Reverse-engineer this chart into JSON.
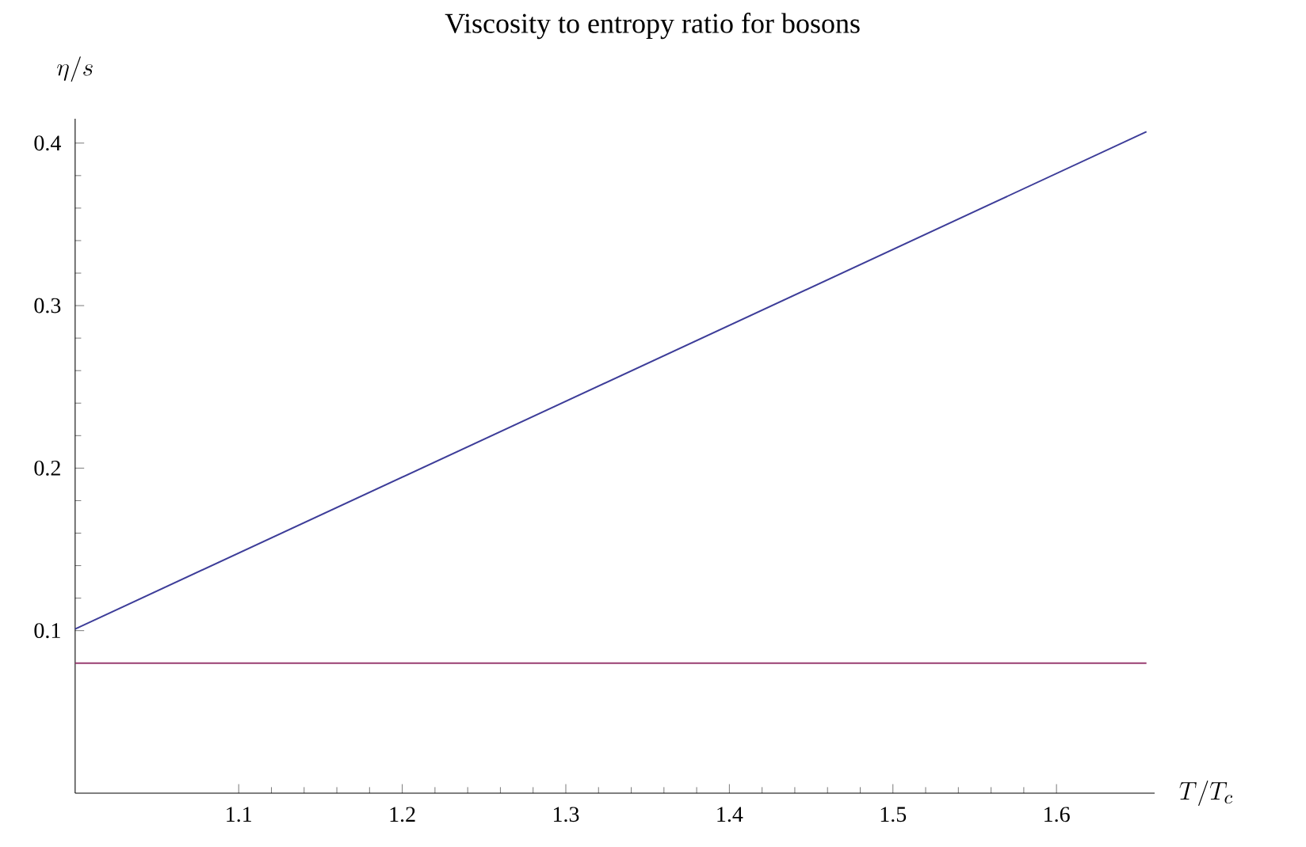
{
  "chart_data": {
    "type": "line",
    "title": "Viscosity to entropy ratio for bosons",
    "xlabel": "T/T_c",
    "ylabel": "\\eta/s",
    "x": [
      1.0,
      1.655
    ],
    "series": [
      {
        "color": "#3d3d99",
        "values": [
          0.101,
          0.407
        ]
      },
      {
        "color": "#993d71",
        "values": [
          0.08,
          0.08
        ]
      }
    ],
    "xlim": [
      1.0,
      1.66
    ],
    "ylim": [
      0,
      0.415
    ],
    "xticks": [
      1.1,
      1.2,
      1.3,
      1.4,
      1.5,
      1.6
    ],
    "yticks": [
      0.1,
      0.2,
      0.3,
      0.4
    ]
  }
}
